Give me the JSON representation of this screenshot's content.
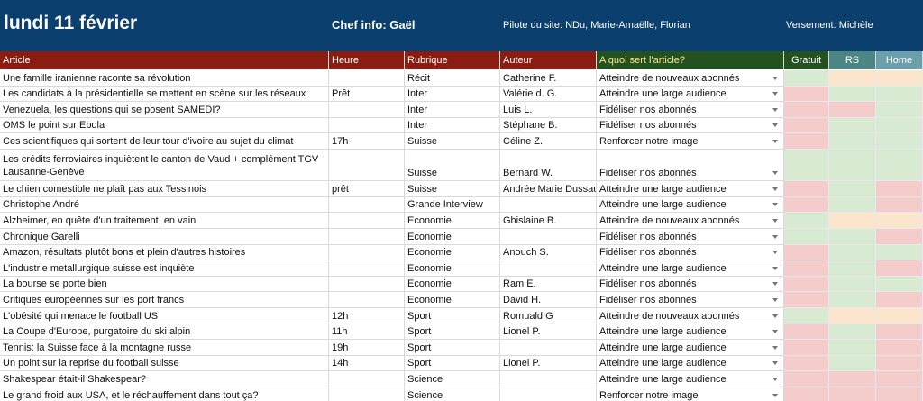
{
  "header": {
    "title": "lundi 11 février",
    "chef": "Chef info: Gaël",
    "pilote": "Pilote du site: NDu, Marie-Amaëlle, Florian",
    "versement": "Versement: Michèle"
  },
  "table": {
    "columns": [
      "Article",
      "Heure",
      "Rubrique",
      "Auteur",
      "A quoi sert l'article?",
      "Gratuit",
      "RS",
      "Home"
    ],
    "rows": [
      [
        "Une famille iranienne raconte sa révolution",
        null,
        "Récit",
        "Catherine F.",
        "Atteindre de nouveaux abonnés"
      ],
      [
        "Les candidats à la présidentielle se mettent en scène sur les réseaux",
        "Prêt",
        "Inter",
        "Valérie d. G.",
        "Atteindre une large audience"
      ],
      [
        "Venezuela, les questions qui se posent SAMEDI?",
        null,
        "Inter",
        "Luis L.",
        "Fidéliser nos abonnés"
      ],
      [
        "OMS le point sur Ebola",
        null,
        "Inter",
        "Stéphane B.",
        "Fidéliser nos abonnés"
      ],
      [
        "Ces scientifiques qui sortent de leur tour d'ivoire au sujet du climat",
        "17h",
        "Suisse",
        "Céline Z.",
        "Renforcer notre image"
      ],
      [
        "Les crédits ferroviaires inquiètent le canton de Vaud + complément TGV Lausanne-Genève",
        null,
        "Suisse",
        "Bernard W.",
        "Fidéliser nos abonnés"
      ],
      [
        "Le chien comestible ne plaît pas aux Tessinois",
        "prêt",
        "Suisse",
        "Andrée Marie Dussault",
        "Atteindre une large audience"
      ],
      [
        "Christophe André",
        null,
        "Grande Interview",
        null,
        "Atteindre une large audience"
      ],
      [
        "Alzheimer, en quête d'un traitement, en vain",
        null,
        "Economie",
        "Ghislaine B.",
        "Atteindre de nouveaux abonnés"
      ],
      [
        "Chronique Garelli",
        null,
        "Economie",
        null,
        "Fidéliser nos abonnés"
      ],
      [
        "Amazon, résultats plutôt bons et plein d'autres histoires",
        null,
        "Economie",
        "Anouch S.",
        "Fidéliser nos abonnés"
      ],
      [
        "L'industrie metallurgique suisse est inquiète",
        null,
        "Economie",
        null,
        "Atteindre une large audience"
      ],
      [
        "La bourse se porte bien",
        null,
        "Economie",
        "Ram E.",
        "Fidéliser nos abonnés"
      ],
      [
        "Critiques européennes sur les port francs",
        null,
        "Economie",
        "David H.",
        "Fidéliser nos abonnés"
      ],
      [
        "L'obésité qui menace le football US",
        "12h",
        "Sport",
        "Romuald G",
        "Atteindre de nouveaux abonnés"
      ],
      [
        "La Coupe d'Europe, purgatoire du ski alpin",
        "11h",
        "Sport",
        "Lionel P.",
        "Atteindre une large audience"
      ],
      [
        "Tennis: la Suisse face à la montagne russe",
        "19h",
        "Sport",
        null,
        "Atteindre une large audience"
      ],
      [
        "Un point sur la reprise du football suisse",
        "14h",
        "Sport",
        "Lionel P.",
        "Atteindre une large audience"
      ],
      [
        "Shakespear était-il Shakespear?",
        null,
        "Science",
        null,
        "Atteindre une large audience"
      ],
      [
        "Le grand froid aux USA, et le réchauffement dans tout ça?",
        null,
        "Science",
        null,
        "Renforcer notre image"
      ]
    ],
    "cell_colors": [
      [
        "#d9ead3",
        "#fce5cd",
        "#fce5cd"
      ],
      [
        "#f4cccc",
        "#d9ead3",
        "#d9ead3"
      ],
      [
        "#f4cccc",
        "#f4cccc",
        "#d9ead3"
      ],
      [
        "#f4cccc",
        "#d9ead3",
        "#d9ead3"
      ],
      [
        "#f4cccc",
        "#d9ead3",
        "#d9ead3"
      ],
      [
        "#d9ead3",
        "#d9ead3",
        "#d9ead3"
      ],
      [
        "#f4cccc",
        "#d9ead3",
        "#f4cccc"
      ],
      [
        "#f4cccc",
        "#d9ead3",
        "#f4cccc"
      ],
      [
        "#d9ead3",
        "#fce5cd",
        "#fce5cd"
      ],
      [
        "#d9ead3",
        "#d9ead3",
        "#f4cccc"
      ],
      [
        "#f4cccc",
        "#d9ead3",
        "#d9ead3"
      ],
      [
        "#f4cccc",
        "#d9ead3",
        "#f4cccc"
      ],
      [
        "#f4cccc",
        "#d9ead3",
        "#d9ead3"
      ],
      [
        "#f4cccc",
        "#d9ead3",
        "#f4cccc"
      ],
      [
        "#d9ead3",
        "#fce5cd",
        "#fce5cd"
      ],
      [
        "#f4cccc",
        "#d9ead3",
        "#f4cccc"
      ],
      [
        "#f4cccc",
        "#d9ead3",
        "#f4cccc"
      ],
      [
        "#f4cccc",
        "#d9ead3",
        "#f4cccc"
      ],
      [
        "#f4cccc",
        "#f4cccc",
        "#f4cccc"
      ],
      [
        "#f4cccc",
        "#f4cccc",
        "#f4cccc"
      ]
    ]
  }
}
